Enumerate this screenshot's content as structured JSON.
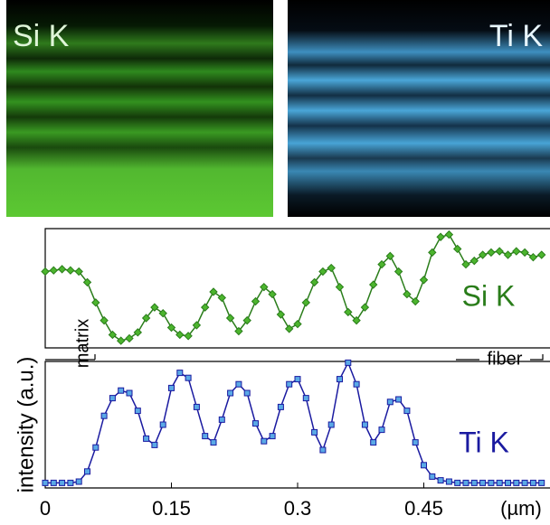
{
  "maps": [
    {
      "label": "Si K"
    },
    {
      "label": "Ti K"
    }
  ],
  "ylabel": "intensity (a.u.)",
  "annotations": [
    "matrix",
    "fiber"
  ],
  "chart_data": [
    {
      "type": "line",
      "x": [
        0,
        0.01,
        0.02,
        0.03,
        0.04,
        0.05,
        0.06,
        0.07,
        0.08,
        0.09,
        0.1,
        0.11,
        0.12,
        0.13,
        0.14,
        0.15,
        0.16,
        0.17,
        0.18,
        0.19,
        0.2,
        0.21,
        0.22,
        0.23,
        0.24,
        0.25,
        0.26,
        0.27,
        0.28,
        0.29,
        0.3,
        0.31,
        0.32,
        0.33,
        0.34,
        0.35,
        0.36,
        0.37,
        0.38,
        0.39,
        0.4,
        0.41,
        0.42,
        0.43,
        0.44,
        0.45,
        0.46,
        0.47,
        0.48,
        0.49,
        0.5,
        0.51,
        0.52,
        0.53,
        0.54,
        0.55,
        0.56,
        0.57,
        0.58,
        0.59
      ],
      "xlim": [
        0,
        0.6
      ],
      "ylim": [
        0,
        100
      ],
      "series": [
        {
          "name": "Si K",
          "color": "#2a7d1a",
          "marker": "diamond",
          "marker_color": "#4cb52e",
          "values": [
            64,
            65,
            66,
            65,
            64,
            55,
            38,
            23,
            11,
            6,
            8,
            13,
            25,
            34,
            29,
            17,
            11,
            10,
            19,
            34,
            47,
            42,
            25,
            14,
            23,
            39,
            51,
            45,
            28,
            16,
            20,
            38,
            55,
            64,
            67,
            51,
            30,
            23,
            34,
            53,
            70,
            77,
            64,
            45,
            39,
            57,
            80,
            93,
            95,
            83,
            70,
            73,
            78,
            80,
            81,
            78,
            81,
            80,
            76,
            78
          ]
        }
      ]
    },
    {
      "type": "line",
      "x": [
        0,
        0.01,
        0.02,
        0.03,
        0.04,
        0.05,
        0.06,
        0.07,
        0.08,
        0.09,
        0.1,
        0.11,
        0.12,
        0.13,
        0.14,
        0.15,
        0.16,
        0.17,
        0.18,
        0.19,
        0.2,
        0.21,
        0.22,
        0.23,
        0.24,
        0.25,
        0.26,
        0.27,
        0.28,
        0.29,
        0.3,
        0.31,
        0.32,
        0.33,
        0.34,
        0.35,
        0.36,
        0.37,
        0.38,
        0.39,
        0.4,
        0.41,
        0.42,
        0.43,
        0.44,
        0.45,
        0.46,
        0.47,
        0.48,
        0.49,
        0.5,
        0.51,
        0.52,
        0.53,
        0.54,
        0.55,
        0.56,
        0.57,
        0.58,
        0.59
      ],
      "xlim": [
        0,
        0.6
      ],
      "xticks": [
        0,
        0.15,
        0.3,
        0.45
      ],
      "xlabel": "(µm)",
      "ylim": [
        0,
        100
      ],
      "series": [
        {
          "name": "Ti K",
          "color": "#1a1aa0",
          "marker": "square",
          "marker_color": "#5aa9e6",
          "values": [
            4,
            4,
            4,
            4,
            5,
            13,
            32,
            57,
            71,
            77,
            75,
            61,
            39,
            34,
            50,
            79,
            91,
            87,
            64,
            41,
            36,
            54,
            75,
            82,
            75,
            51,
            37,
            41,
            64,
            82,
            86,
            71,
            44,
            30,
            50,
            86,
            99,
            82,
            50,
            36,
            46,
            68,
            70,
            61,
            36,
            18,
            9,
            6,
            5,
            4,
            4,
            4,
            4,
            4,
            4,
            4,
            4,
            4,
            4,
            4
          ]
        }
      ]
    }
  ]
}
